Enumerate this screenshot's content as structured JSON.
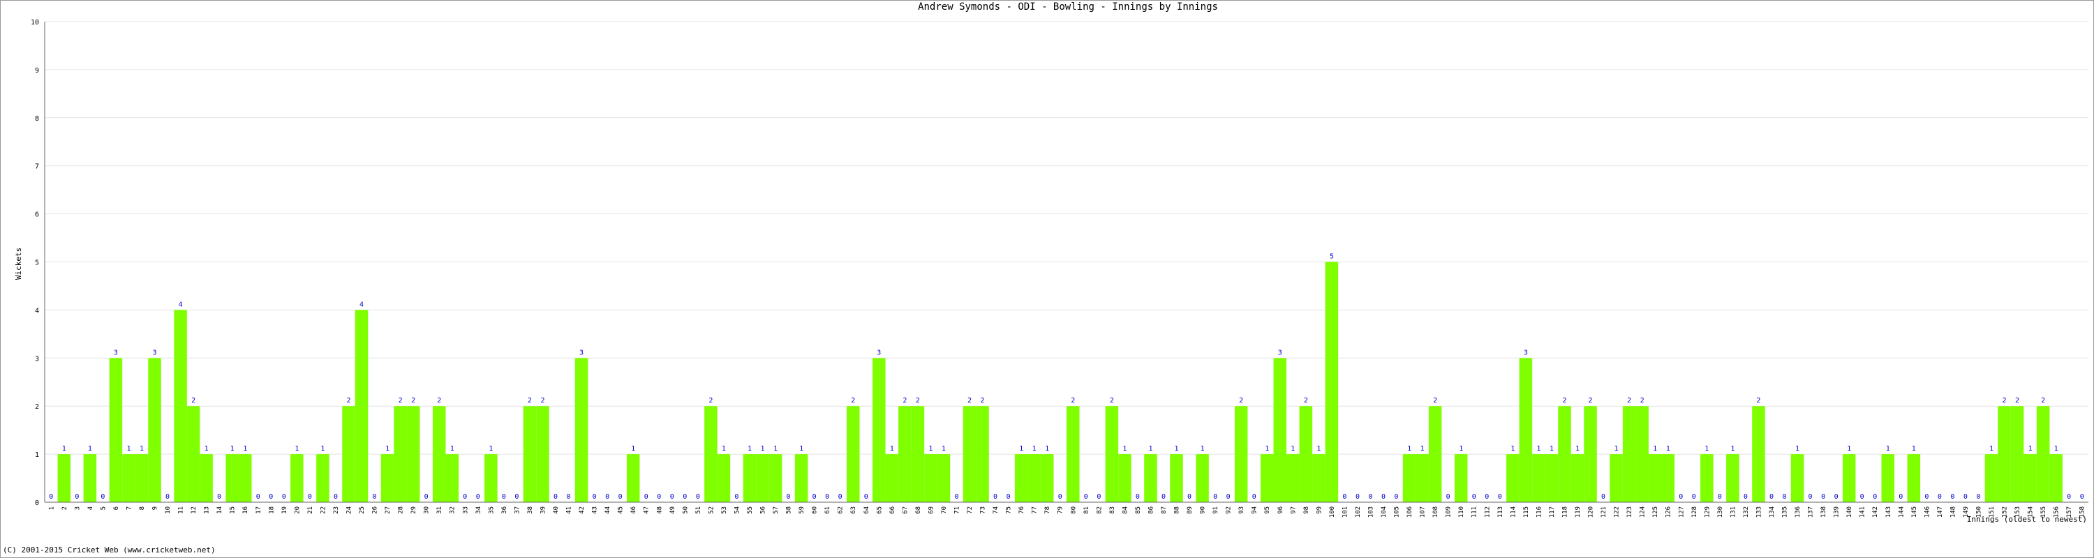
{
  "chart_data": {
    "type": "bar",
    "title": "Andrew Symonds - ODI - Bowling - Innings by Innings",
    "y_label": "Wickets",
    "x_label": "Innings (oldest to newest)",
    "footer": "(C) 2001-2015 Cricket Web (www.cricketweb.net)",
    "color": "#80ff00",
    "label_color": "#0000cc",
    "grid": true,
    "ylim": [
      0,
      10
    ],
    "yticks": [
      0,
      1,
      2,
      3,
      4,
      5,
      6,
      7,
      8,
      9,
      10
    ],
    "categories": [
      "1",
      "2",
      "3",
      "4",
      "5",
      "6",
      "7",
      "8",
      "9",
      "10",
      "11",
      "12",
      "13",
      "14",
      "15",
      "16",
      "17",
      "18",
      "19",
      "20",
      "21",
      "22",
      "23",
      "24",
      "25",
      "26",
      "27",
      "28",
      "29",
      "30",
      "31",
      "32",
      "33",
      "34",
      "35",
      "36",
      "37",
      "38",
      "39",
      "40",
      "41",
      "42",
      "43",
      "44",
      "45",
      "46",
      "47",
      "48",
      "49",
      "50",
      "51",
      "52",
      "53",
      "54",
      "55",
      "56",
      "57",
      "58",
      "59",
      "60",
      "61",
      "62",
      "63",
      "64",
      "65",
      "66",
      "67",
      "68",
      "69",
      "70",
      "71",
      "72",
      "73",
      "74",
      "75",
      "76",
      "77",
      "78",
      "79",
      "80",
      "81",
      "82",
      "83",
      "84",
      "85",
      "86",
      "87",
      "88",
      "89",
      "90",
      "91",
      "92",
      "93",
      "94",
      "95",
      "96",
      "97",
      "98",
      "99",
      "100",
      "101",
      "102",
      "103",
      "104",
      "105",
      "106",
      "107",
      "108",
      "109",
      "110",
      "111",
      "112",
      "113",
      "114",
      "115",
      "116",
      "117",
      "118",
      "119",
      "120",
      "121",
      "122",
      "123",
      "124",
      "125",
      "126",
      "127",
      "128",
      "129",
      "130",
      "131",
      "132",
      "133",
      "134",
      "135",
      "136",
      "137",
      "138",
      "139",
      "140",
      "141",
      "142",
      "143",
      "144",
      "145",
      "146",
      "147",
      "148",
      "149",
      "150",
      "151",
      "152",
      "153",
      "154",
      "155",
      "156",
      "157",
      "158"
    ],
    "values": [
      0,
      1,
      0,
      1,
      0,
      3,
      1,
      1,
      3,
      0,
      4,
      2,
      1,
      0,
      1,
      1,
      0,
      0,
      0,
      1,
      0,
      1,
      0,
      2,
      4,
      0,
      1,
      2,
      2,
      0,
      2,
      1,
      0,
      0,
      1,
      0,
      0,
      2,
      2,
      0,
      0,
      3,
      0,
      0,
      0,
      1,
      0,
      0,
      0,
      0,
      0,
      2,
      1,
      0,
      1,
      1,
      1,
      0,
      1,
      0,
      0,
      0,
      2,
      0,
      3,
      1,
      2,
      2,
      1,
      1,
      0,
      2,
      2,
      0,
      0,
      1,
      1,
      1,
      0,
      2,
      0,
      0,
      2,
      1,
      0,
      1,
      0,
      1,
      0,
      1,
      0,
      0,
      2,
      0,
      1,
      3,
      1,
      2,
      1,
      5,
      0,
      0,
      0,
      0,
      0,
      1,
      1,
      2,
      0,
      1,
      0,
      0,
      0,
      1,
      3,
      1,
      1,
      2,
      1,
      2,
      0,
      1,
      2,
      2,
      1,
      1,
      0,
      0,
      1,
      0,
      1,
      0,
      2,
      0,
      0,
      1,
      0,
      0,
      0,
      1,
      0,
      0,
      1,
      0,
      1,
      0,
      0,
      0,
      0,
      0,
      1,
      2,
      2,
      1,
      2,
      1,
      0,
      0
    ]
  }
}
